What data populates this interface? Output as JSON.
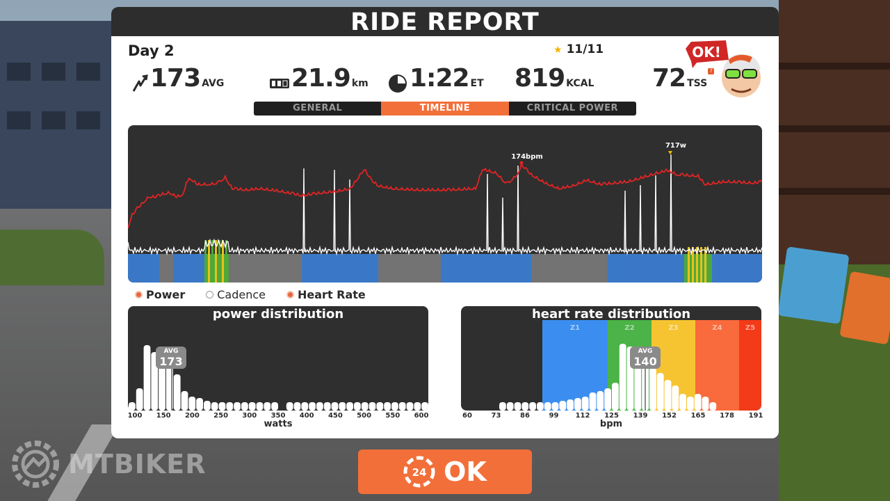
{
  "panel": {
    "title": "RIDE REPORT",
    "day": "Day 2",
    "stars": "11/11",
    "avatar_bubble": "OK!"
  },
  "stats": {
    "power": {
      "value": "173",
      "unit": "AVG"
    },
    "distance": {
      "value": "21.9",
      "unit": "km"
    },
    "time": {
      "value": "1:22",
      "unit": "ET"
    },
    "calories": {
      "value": "819",
      "unit": "KCAL"
    },
    "tss": {
      "value": "72",
      "unit": "TSS",
      "info": "?"
    }
  },
  "tabs": [
    {
      "label": "GENERAL",
      "active": false
    },
    {
      "label": "TIMELINE",
      "active": true
    },
    {
      "label": "CRITICAL POWER",
      "active": false
    }
  ],
  "timeline": {
    "hr_peak_label": "174bpm",
    "power_peak_label": "717w",
    "colors": {
      "heart_rate": "#e02424",
      "power": "#ffffff",
      "z1": "#3a78c7",
      "z2": "#4ea83a",
      "z3": "#e8c21c",
      "grey": "#737373"
    }
  },
  "legend": [
    {
      "label": "Power",
      "enabled": true
    },
    {
      "label": "Cadence",
      "enabled": false
    },
    {
      "label": "Heart Rate",
      "enabled": true
    }
  ],
  "power_distribution": {
    "title": "power distribution",
    "axis_unit": "watts",
    "ticks": [
      "100",
      "150",
      "200",
      "250",
      "300",
      "350",
      "400",
      "450",
      "500",
      "550",
      "600"
    ],
    "avg_label": "AVG",
    "avg_value": "173"
  },
  "hr_distribution": {
    "title": "heart rate distribution",
    "axis_unit": "bpm",
    "ticks": [
      "60",
      "73",
      "86",
      "99",
      "112",
      "125",
      "139",
      "152",
      "165",
      "178",
      "191"
    ],
    "zones": [
      {
        "label": "Z1",
        "color": "#3b8ef0"
      },
      {
        "label": "Z2",
        "color": "#4bb347"
      },
      {
        "label": "Z3",
        "color": "#f7c431"
      },
      {
        "label": "Z4",
        "color": "#f96a3c"
      },
      {
        "label": "Z5",
        "color": "#f33a19"
      }
    ],
    "avg_label": "AVG",
    "avg_value": "140"
  },
  "ok_button": {
    "label": "OK",
    "badge": "24"
  },
  "watermark": {
    "text": "MTBIKER"
  }
}
